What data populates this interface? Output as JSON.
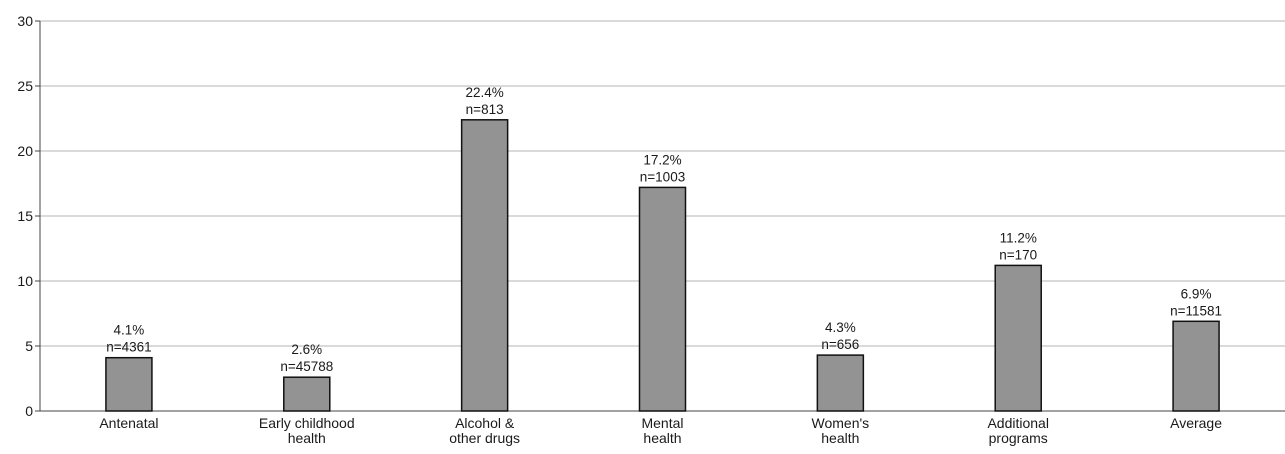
{
  "chart_data": {
    "type": "bar",
    "categories": [
      [
        "Antenatal"
      ],
      [
        "Early childhood",
        "health"
      ],
      [
        "Alcohol &",
        "other drugs"
      ],
      [
        "Mental",
        "health"
      ],
      [
        "Women's",
        "health"
      ],
      [
        "Additional",
        "programs"
      ],
      [
        "Average"
      ]
    ],
    "values": [
      4.1,
      2.6,
      22.4,
      17.2,
      4.3,
      11.2,
      6.9
    ],
    "value_labels": [
      "4.1%",
      "2.6%",
      "22.4%",
      "17.2%",
      "4.3%",
      "11.2%",
      "6.9%"
    ],
    "n_labels": [
      "n=4361",
      "n=45788",
      "n=813",
      "n=1003",
      "n=656",
      "n=170",
      "n=11581"
    ],
    "yticks": [
      0,
      5,
      10,
      15,
      20,
      25,
      30
    ],
    "ylim": [
      0,
      30
    ],
    "grid": true,
    "colors": {
      "bar": "#939393",
      "bar_border": "#111111",
      "grid": "#b5b5b5",
      "axis": "#444444"
    }
  }
}
